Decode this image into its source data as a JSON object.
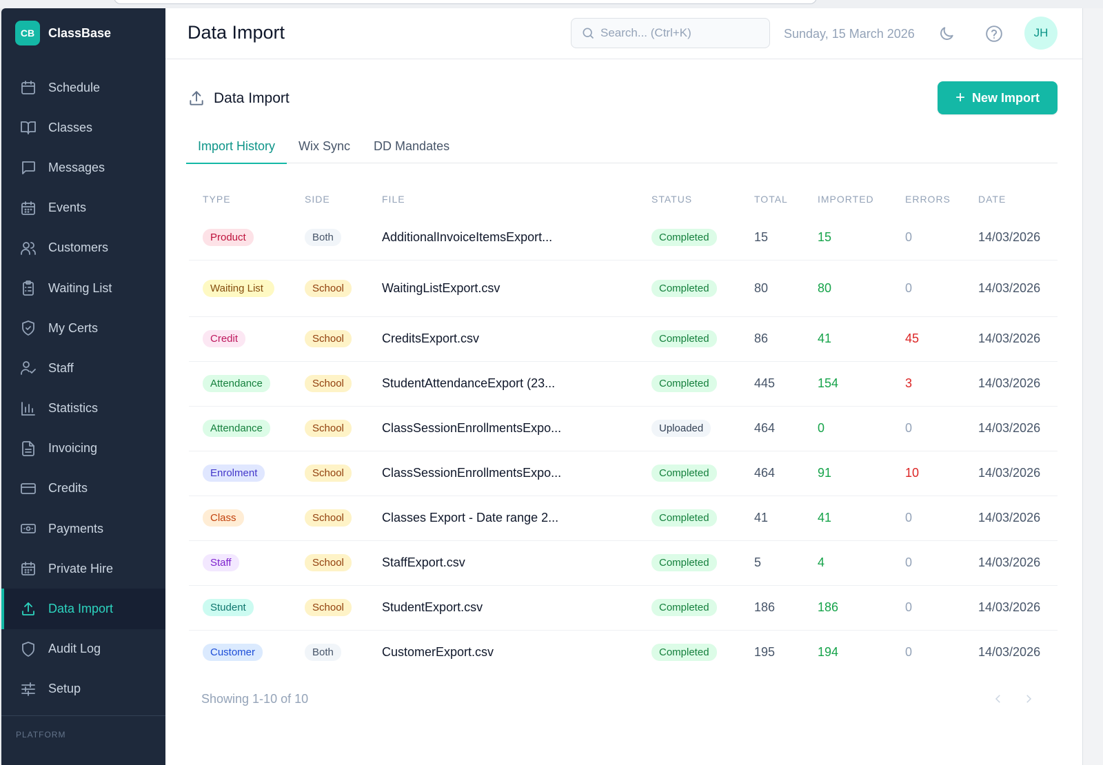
{
  "brand": {
    "logo": "CB",
    "name": "ClassBase"
  },
  "sidebar": {
    "items": [
      {
        "label": "Schedule",
        "icon": "calendar-icon"
      },
      {
        "label": "Classes",
        "icon": "book-icon"
      },
      {
        "label": "Messages",
        "icon": "message-icon"
      },
      {
        "label": "Events",
        "icon": "calendar-grid-icon"
      },
      {
        "label": "Customers",
        "icon": "users-icon"
      },
      {
        "label": "Waiting List",
        "icon": "clipboard-list-icon"
      },
      {
        "label": "My Certs",
        "icon": "shield-check-icon"
      },
      {
        "label": "Staff",
        "icon": "user-check-icon"
      },
      {
        "label": "Statistics",
        "icon": "bar-chart-icon"
      },
      {
        "label": "Invoicing",
        "icon": "file-text-icon"
      },
      {
        "label": "Credits",
        "icon": "credit-card-icon"
      },
      {
        "label": "Payments",
        "icon": "banknote-icon"
      },
      {
        "label": "Private Hire",
        "icon": "calendar-grid-icon"
      },
      {
        "label": "Data Import",
        "icon": "upload-icon",
        "active": true
      },
      {
        "label": "Audit Log",
        "icon": "shield-icon"
      },
      {
        "label": "Setup",
        "icon": "sliders-icon"
      }
    ],
    "section_label": "PLATFORM"
  },
  "header": {
    "title": "Data Import",
    "search_placeholder": "Search... (Ctrl+K)",
    "date": "Sunday, 15 March 2026",
    "avatar": "JH"
  },
  "section": {
    "title": "Data Import",
    "new_button": "New Import"
  },
  "tabs": [
    {
      "label": "Import History",
      "active": true
    },
    {
      "label": "Wix Sync"
    },
    {
      "label": "DD Mandates"
    }
  ],
  "table": {
    "columns": [
      "TYPE",
      "SIDE",
      "FILE",
      "STATUS",
      "TOTAL",
      "IMPORTED",
      "ERRORS",
      "DATE"
    ],
    "rows": [
      {
        "type": "Product",
        "side": "Both",
        "file": "AdditionalInvoiceItemsExport...",
        "status": "Completed",
        "total": "15",
        "imported": "15",
        "errors": "0",
        "date": "14/03/2026"
      },
      {
        "type": "Waiting List",
        "side": "School",
        "file": "WaitingListExport.csv",
        "status": "Completed",
        "total": "80",
        "imported": "80",
        "errors": "0",
        "date": "14/03/2026"
      },
      {
        "type": "Credit",
        "side": "School",
        "file": "CreditsExport.csv",
        "status": "Completed",
        "total": "86",
        "imported": "41",
        "errors": "45",
        "date": "14/03/2026"
      },
      {
        "type": "Attendance",
        "side": "School",
        "file": "StudentAttendanceExport (23...",
        "status": "Completed",
        "total": "445",
        "imported": "154",
        "errors": "3",
        "date": "14/03/2026"
      },
      {
        "type": "Attendance",
        "side": "School",
        "file": "ClassSessionEnrollmentsExpo...",
        "status": "Uploaded",
        "total": "464",
        "imported": "0",
        "errors": "0",
        "date": "14/03/2026"
      },
      {
        "type": "Enrolment",
        "side": "School",
        "file": "ClassSessionEnrollmentsExpo...",
        "status": "Completed",
        "total": "464",
        "imported": "91",
        "errors": "10",
        "date": "14/03/2026"
      },
      {
        "type": "Class",
        "side": "School",
        "file": "Classes Export - Date range 2...",
        "status": "Completed",
        "total": "41",
        "imported": "41",
        "errors": "0",
        "date": "14/03/2026"
      },
      {
        "type": "Staff",
        "side": "School",
        "file": "StaffExport.csv",
        "status": "Completed",
        "total": "5",
        "imported": "4",
        "errors": "0",
        "date": "14/03/2026"
      },
      {
        "type": "Student",
        "side": "School",
        "file": "StudentExport.csv",
        "status": "Completed",
        "total": "186",
        "imported": "186",
        "errors": "0",
        "date": "14/03/2026"
      },
      {
        "type": "Customer",
        "side": "Both",
        "file": "CustomerExport.csv",
        "status": "Completed",
        "total": "195",
        "imported": "194",
        "errors": "0",
        "date": "14/03/2026"
      }
    ]
  },
  "footer": {
    "showing": "Showing 1-10 of 10"
  },
  "colors": {
    "accent": "#14b8a6",
    "sidebar_bg": "#1e293b",
    "type_badges": {
      "Product": [
        "#fde2e7",
        "#be123c"
      ],
      "Waiting List": [
        "#fef9c3",
        "#854d0e"
      ],
      "Credit": [
        "#fce7f3",
        "#be185d"
      ],
      "Attendance": [
        "#dcfce7",
        "#15803d"
      ],
      "Enrolment": [
        "#e0e7ff",
        "#4338ca"
      ],
      "Class": [
        "#ffedd5",
        "#c2410c"
      ],
      "Staff": [
        "#f3e8ff",
        "#7e22ce"
      ],
      "Student": [
        "#ccfbf1",
        "#0f766e"
      ],
      "Customer": [
        "#dbeafe",
        "#1d4ed8"
      ]
    },
    "side_badges": {
      "Both": [
        "#f1f5f9",
        "#475569"
      ],
      "School": [
        "#fef3c7",
        "#92400e"
      ]
    },
    "status_badges": {
      "Completed": [
        "#dcfce7",
        "#15803d"
      ],
      "Uploaded": [
        "#f1f5f9",
        "#334155"
      ]
    }
  }
}
